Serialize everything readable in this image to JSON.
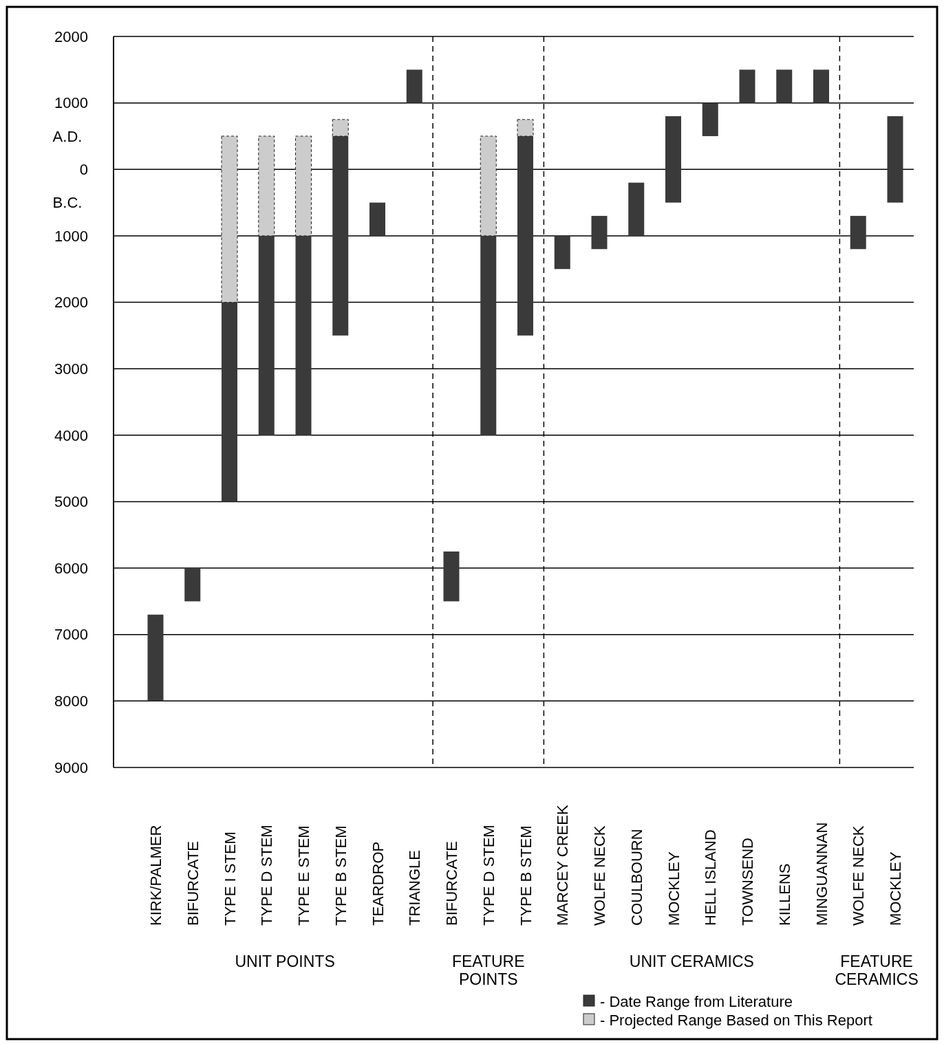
{
  "chart_data": {
    "type": "bar",
    "categories": [
      "KIRK/PALMER",
      "BIFURCATE",
      "TYPE I STEM",
      "TYPE D STEM",
      "TYPE E STEM",
      "TYPE B STEM",
      "TEARDROP",
      "TRIANGLE",
      "BIFURCATE",
      "TYPE D STEM",
      "TYPE B STEM",
      "MARCEY CREEK",
      "WOLFE NECK",
      "COULBOURN",
      "MOCKLEY",
      "HELL ISLAND",
      "TOWNSEND",
      "KILLENS",
      "MINGUANNAN",
      "WOLFE NECK",
      "MOCKLEY"
    ],
    "series": [
      {
        "name": "- Date Range from Literature",
        "color": "#3a3a3a",
        "base": [
          -8000,
          -6500,
          -5000,
          -4000,
          -4000,
          -2500,
          -1000,
          1000,
          -6500,
          -4000,
          -2500,
          -1500,
          -1200,
          -1000,
          -500,
          500,
          1000,
          1000,
          1000,
          -1200,
          -500
        ],
        "values": [
          1300,
          500,
          3000,
          3000,
          3000,
          3000,
          500,
          500,
          750,
          3000,
          3000,
          500,
          500,
          800,
          1300,
          500,
          500,
          500,
          500,
          500,
          1300
        ]
      },
      {
        "name": "- Projected Range Based on This Report",
        "color": "#cccccc",
        "base": [
          null,
          null,
          -2000,
          -1000,
          -1000,
          500,
          null,
          null,
          null,
          -1000,
          500,
          null,
          null,
          null,
          null,
          null,
          null,
          null,
          null,
          null,
          null
        ],
        "values": [
          null,
          null,
          2500,
          1500,
          1500,
          250,
          null,
          null,
          null,
          1500,
          250,
          null,
          null,
          null,
          null,
          null,
          null,
          null,
          null,
          null,
          null
        ]
      }
    ],
    "ylim": [
      -9000,
      2000
    ],
    "yticks": [
      2000,
      1000,
      0,
      {
        "value": -1000,
        "label": "1000"
      },
      {
        "value": -2000,
        "label": "2000"
      },
      {
        "value": -3000,
        "label": "3000"
      },
      {
        "value": -4000,
        "label": "4000"
      },
      {
        "value": -5000,
        "label": "5000"
      },
      {
        "value": -6000,
        "label": "6000"
      },
      {
        "value": -7000,
        "label": "7000"
      },
      {
        "value": -8000,
        "label": "8000"
      },
      {
        "value": -9000,
        "label": "9000"
      }
    ],
    "grid": "y",
    "legend": "bottom right",
    "annotations": [
      "A.D.",
      "B.C.",
      "UNIT POINTS",
      "FEATURE POINTS",
      "UNIT CERAMICS",
      "FEATURE CERAMICS"
    ]
  }
}
